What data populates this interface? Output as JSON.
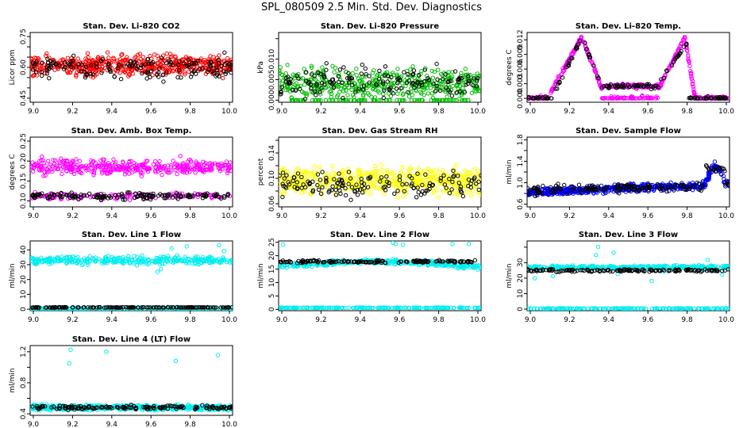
{
  "title": "SPL_080509  2.5 Min. Std. Dev. Diagnostics",
  "chart_data": [
    {
      "type": "scatter",
      "title": "Stan. Dev. Li-820 CO2",
      "ylabel": "Licor ppm",
      "xlim": [
        9.0,
        10.0
      ],
      "ylim": [
        0.43,
        0.77
      ],
      "yticks": [
        0.45,
        0.5,
        0.55,
        0.6,
        0.65,
        0.7,
        0.75
      ],
      "ytick_labels": [
        "0.45",
        "",
        "",
        "0.60",
        "",
        "",
        "0.75"
      ],
      "colors": [
        "#ff0000",
        "#000000"
      ],
      "pattern": "noise",
      "params": {
        "base": 0.61,
        "spread": 0.045,
        "base2": 0.6,
        "spread2": 0.05
      }
    },
    {
      "type": "scatter",
      "title": "Stan. Dev. Li-820 Pressure",
      "ylabel": "kPa",
      "xlim": [
        9.0,
        10.0
      ],
      "ylim": [
        -0.0005,
        0.0165
      ],
      "yticks": [
        0,
        0.005,
        0.01,
        0.015
      ],
      "ytick_labels": [
        "0.000",
        "0.005",
        "0.010",
        ""
      ],
      "colors": [
        "#00bb00",
        "#000000"
      ],
      "pattern": "noise_pos",
      "params": {
        "base": 0.004,
        "spread": 0.0035,
        "base2": 0.0045,
        "spread2": 0.0035
      }
    },
    {
      "type": "scatter",
      "title": "Stan. Dev. Li-820 Temp.",
      "ylabel": "degrees C",
      "xlim": [
        9.0,
        10.0
      ],
      "ylim": [
        -0.0008,
        0.0135
      ],
      "yticks": [
        0,
        0.003,
        0.006,
        0.009,
        0.012
      ],
      "ytick_labels": [
        "0.000",
        "0.003",
        "0.006",
        "0.009",
        "0.012"
      ],
      "colors": [
        "#ff00ff",
        "#000000"
      ],
      "pattern": "temp",
      "params": {}
    },
    {
      "type": "scatter",
      "title": "Stan. Dev. Amb. Box Temp.",
      "ylabel": "degrees C",
      "xlim": [
        9.0,
        10.0
      ],
      "ylim": [
        0.085,
        0.26
      ],
      "yticks": [
        0.1,
        0.15,
        0.2,
        0.25
      ],
      "ytick_labels": [
        "0.10",
        "0.15",
        "0.20",
        "0.25"
      ],
      "colors": [
        "#ff00ff",
        "#000000"
      ],
      "pattern": "twoband",
      "params": {
        "base": 0.185,
        "spread": 0.018,
        "base2": 0.112,
        "spread2": 0.008
      }
    },
    {
      "type": "scatter",
      "title": "Stan. Dev. Gas Stream RH",
      "ylabel": "percent",
      "xlim": [
        9.0,
        10.0
      ],
      "ylim": [
        0.055,
        0.165
      ],
      "yticks": [
        0.06,
        0.08,
        0.1,
        0.12,
        0.14,
        0.16
      ],
      "ytick_labels": [
        "0.06",
        "",
        "0.10",
        "",
        "0.14",
        ""
      ],
      "colors": [
        "#ffff00",
        "#000000"
      ],
      "pattern": "noise",
      "params": {
        "base": 0.096,
        "spread": 0.02,
        "base2": 0.092,
        "spread2": 0.018
      }
    },
    {
      "type": "scatter",
      "title": "Stan. Dev. Sample Flow",
      "ylabel": "ml/min",
      "xlim": [
        9.0,
        10.0
      ],
      "ylim": [
        0.55,
        1.85
      ],
      "yticks": [
        0.6,
        0.8,
        1.0,
        1.2,
        1.4,
        1.6,
        1.8
      ],
      "ytick_labels": [
        "0.6",
        "",
        "1.0",
        "",
        "1.4",
        "",
        "1.8"
      ],
      "colors": [
        "#0000ee",
        "#000000"
      ],
      "pattern": "flow",
      "params": {}
    },
    {
      "type": "scatter",
      "title": "Stan. Dev. Line 1 Flow",
      "ylabel": "ml/min",
      "xlim": [
        9.0,
        10.0
      ],
      "ylim": [
        -1,
        46
      ],
      "yticks": [
        0,
        10,
        20,
        30,
        40
      ],
      "ytick_labels": [
        "0",
        "10",
        "20",
        "30",
        "40"
      ],
      "colors": [
        "#00eeee",
        "#000000"
      ],
      "pattern": "line",
      "params": {
        "base": 33,
        "spread": 2.5,
        "base2": 1.2,
        "spread2": 0.15,
        "low": 0.4
      }
    },
    {
      "type": "scatter",
      "title": "Stan. Dev. Line 2 Flow",
      "ylabel": "ml/min",
      "xlim": [
        9.0,
        10.0
      ],
      "ylim": [
        -0.5,
        25.5
      ],
      "yticks": [
        0,
        5,
        10,
        15,
        20,
        25
      ],
      "ytick_labels": [
        "0",
        "5",
        "10",
        "15",
        "20",
        "25"
      ],
      "colors": [
        "#00eeee",
        "#000000"
      ],
      "pattern": "line2",
      "params": {
        "base": 17.5,
        "spread": 0.9,
        "base2": 17.8,
        "spread2": 0.5,
        "low": 0.6
      }
    },
    {
      "type": "scatter",
      "title": "Stan. Dev. Line 3 Flow",
      "ylabel": "ml/min",
      "xlim": [
        9.0,
        10.0
      ],
      "ylim": [
        -1,
        44
      ],
      "yticks": [
        0,
        10,
        20,
        30,
        40
      ],
      "ytick_labels": [
        "0",
        "10",
        "20",
        "30",
        ""
      ],
      "colors": [
        "#00eeee",
        "#000000"
      ],
      "pattern": "line",
      "params": {
        "base": 27,
        "spread": 1.2,
        "base2": 25,
        "spread2": 0.8,
        "low": 0.4
      }
    },
    {
      "type": "scatter",
      "title": "Stan. Dev. Line 4 (LT) Flow",
      "ylabel": "ml/min",
      "xlim": [
        9.0,
        10.0
      ],
      "ylim": [
        0.38,
        1.28
      ],
      "yticks": [
        0.4,
        0.6,
        0.8,
        1.0,
        1.2
      ],
      "ytick_labels": [
        "0.4",
        "",
        "0.8",
        "",
        "1.2"
      ],
      "colors": [
        "#00eeee",
        "#000000"
      ],
      "pattern": "noise",
      "params": {
        "base": 0.48,
        "spread": 0.03,
        "base2": 0.48,
        "spread2": 0.025
      }
    }
  ],
  "xtick_labels": [
    "9.0",
    "9.2",
    "9.4",
    "9.6",
    "9.8",
    "10.0"
  ]
}
